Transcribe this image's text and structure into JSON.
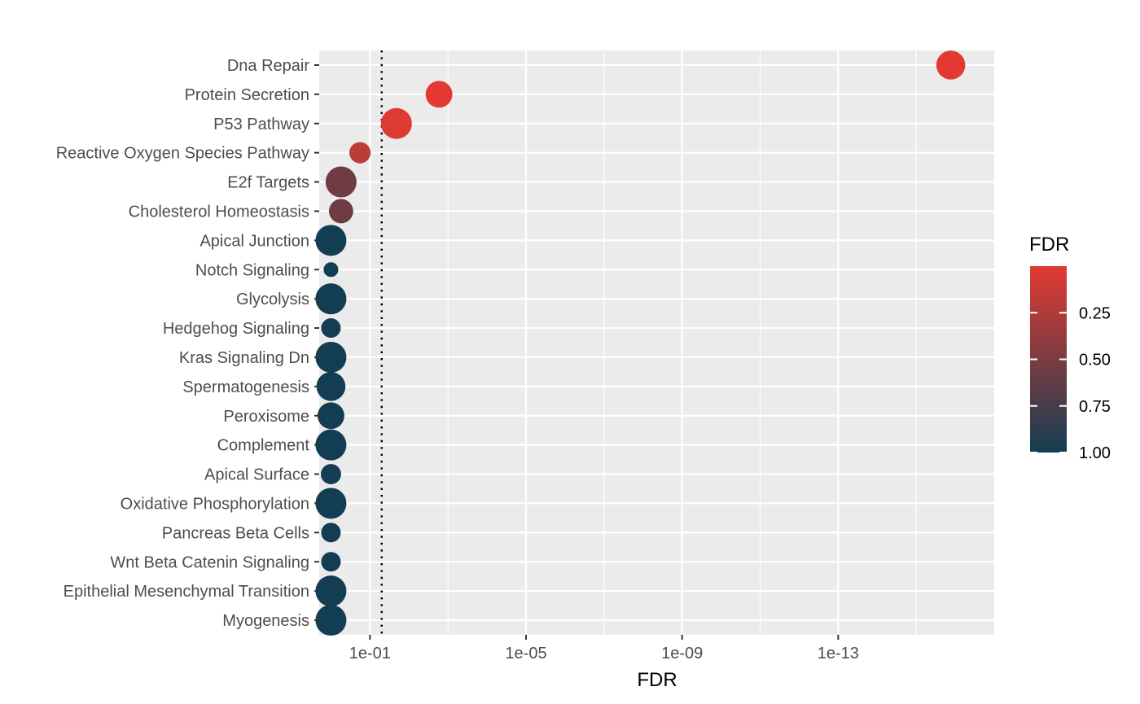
{
  "chart_data": {
    "type": "scatter",
    "title": "",
    "xlabel": "FDR",
    "ylabel": "",
    "x_scale": "reverse-log10",
    "xlim": [
      2,
      1e-17
    ],
    "x_ticks": [
      {
        "value": 0.1,
        "label": "1e-01"
      },
      {
        "value": 1e-05,
        "label": "1e-05"
      },
      {
        "value": 1e-09,
        "label": "1e-09"
      },
      {
        "value": 1e-13,
        "label": "1e-13"
      }
    ],
    "threshold_line": {
      "value": 0.05,
      "style": "dotted"
    },
    "grid": true,
    "panel_background": "#ebebeb",
    "categories": [
      "Dna Repair",
      "Protein Secretion",
      "P53 Pathway",
      "Reactive Oxygen Species Pathway",
      "E2f Targets",
      "Cholesterol Homeostasis",
      "Apical Junction",
      "Notch Signaling",
      "Glycolysis",
      "Hedgehog Signaling",
      "Kras Signaling Dn",
      "Spermatogenesis",
      "Peroxisome",
      "Complement",
      "Apical Surface",
      "Oxidative Phosphorylation",
      "Pancreas Beta Cells",
      "Wnt Beta Catenin Signaling",
      "Epithelial Mesenchymal Transition",
      "Myogenesis"
    ],
    "series": [
      {
        "points": [
          {
            "category": "Dna Repair",
            "fdr": 1.3e-16,
            "size": 5
          },
          {
            "category": "Protein Secretion",
            "fdr": 0.0017,
            "size": 4
          },
          {
            "category": "P53 Pathway",
            "fdr": 0.021,
            "size": 6
          },
          {
            "category": "Reactive Oxygen Species Pathway",
            "fdr": 0.18,
            "size": 2
          },
          {
            "category": "E2f Targets",
            "fdr": 0.55,
            "size": 6
          },
          {
            "category": "Cholesterol Homeostasis",
            "fdr": 0.55,
            "size": 3
          },
          {
            "category": "Apical Junction",
            "fdr": 1.0,
            "size": 6
          },
          {
            "category": "Notch Signaling",
            "fdr": 1.0,
            "size": 0.5
          },
          {
            "category": "Glycolysis",
            "fdr": 1.0,
            "size": 6
          },
          {
            "category": "Hedgehog Signaling",
            "fdr": 1.0,
            "size": 1.5
          },
          {
            "category": "Kras Signaling Dn",
            "fdr": 1.0,
            "size": 6
          },
          {
            "category": "Spermatogenesis",
            "fdr": 1.0,
            "size": 5
          },
          {
            "category": "Peroxisome",
            "fdr": 1.0,
            "size": 4
          },
          {
            "category": "Complement",
            "fdr": 1.0,
            "size": 6
          },
          {
            "category": "Apical Surface",
            "fdr": 1.0,
            "size": 1.7
          },
          {
            "category": "Oxidative Phosphorylation",
            "fdr": 1.0,
            "size": 6
          },
          {
            "category": "Pancreas Beta Cells",
            "fdr": 1.0,
            "size": 1.5
          },
          {
            "category": "Wnt Beta Catenin Signaling",
            "fdr": 1.0,
            "size": 1.5
          },
          {
            "category": "Epithelial Mesenchymal Transition",
            "fdr": 1.0,
            "size": 6
          },
          {
            "category": "Myogenesis",
            "fdr": 1.0,
            "size": 6
          }
        ]
      }
    ],
    "legend": {
      "title": "FDR",
      "placement": "right",
      "type": "colorbar",
      "color_low_fdr": "#e23a33",
      "color_high_fdr": "#133d52",
      "range": [
        0.0,
        1.0
      ],
      "ticks": [
        "0.25",
        "0.50",
        "0.75",
        "1.00"
      ],
      "tick_values": [
        0.25,
        0.5,
        0.75,
        1.0
      ]
    }
  }
}
